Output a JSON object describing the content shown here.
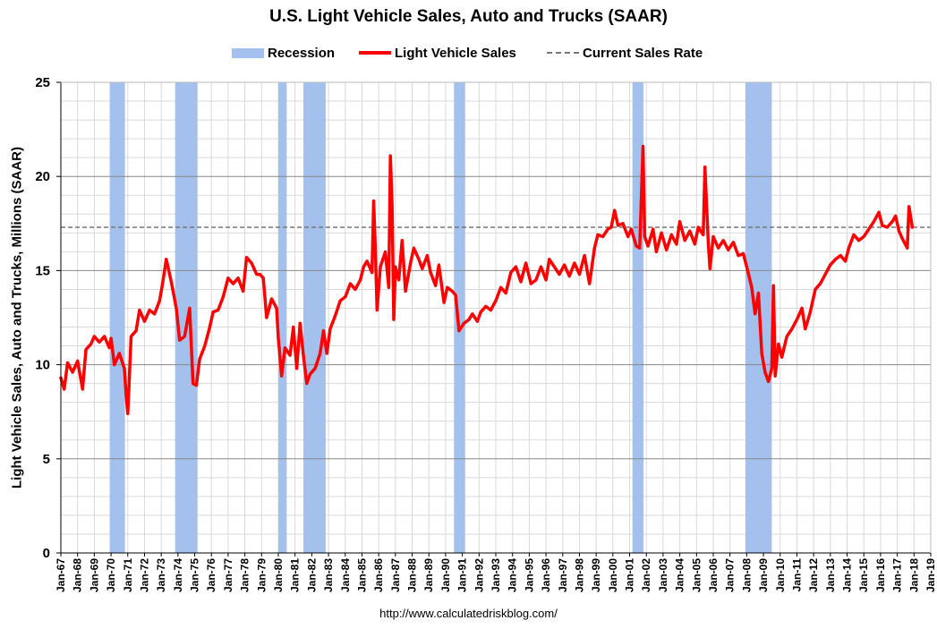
{
  "chart_data": {
    "type": "line",
    "title": "U.S. Light Vehicle Sales, Auto and Trucks (SAAR)",
    "ylabel": "Light Vehicle Sales, Auto and Trucks, Millions (SAAR)",
    "xlabel": "",
    "ylim": [
      0,
      25
    ],
    "yticks": [
      0,
      5,
      10,
      15,
      20,
      25
    ],
    "xlim": [
      1967,
      2019
    ],
    "xticks": [
      "Jan-67",
      "Jan-68",
      "Jan-69",
      "Jan-70",
      "Jan-71",
      "Jan-72",
      "Jan-73",
      "Jan-74",
      "Jan-75",
      "Jan-76",
      "Jan-77",
      "Jan-78",
      "Jan-79",
      "Jan-80",
      "Jan-81",
      "Jan-82",
      "Jan-83",
      "Jan-84",
      "Jan-85",
      "Jan-86",
      "Jan-87",
      "Jan-88",
      "Jan-89",
      "Jan-90",
      "Jan-91",
      "Jan-92",
      "Jan-93",
      "Jan-94",
      "Jan-95",
      "Jan-96",
      "Jan-97",
      "Jan-98",
      "Jan-99",
      "Jan-00",
      "Jan-01",
      "Jan-02",
      "Jan-03",
      "Jan-04",
      "Jan-05",
      "Jan-06",
      "Jan-07",
      "Jan-08",
      "Jan-09",
      "Jan-10",
      "Jan-11",
      "Jan-12",
      "Jan-13",
      "Jan-14",
      "Jan-15",
      "Jan-16",
      "Jan-17",
      "Jan-18",
      "Jan-19"
    ],
    "grid": true,
    "legend_position": "top",
    "legend": [
      "Recession",
      "Light Vehicle Sales",
      "Current Sales Rate"
    ],
    "recessions": [
      [
        1969.92,
        1970.83
      ],
      [
        1973.83,
        1975.17
      ],
      [
        1980.0,
        1980.5
      ],
      [
        1981.5,
        1982.83
      ],
      [
        1990.5,
        1991.17
      ],
      [
        2001.17,
        2001.83
      ],
      [
        2007.92,
        2009.5
      ]
    ],
    "current_sales_rate": 17.3,
    "series": [
      {
        "name": "Light Vehicle Sales",
        "points": [
          [
            1967.0,
            9.3
          ],
          [
            1967.2,
            8.7
          ],
          [
            1967.4,
            10.1
          ],
          [
            1967.7,
            9.6
          ],
          [
            1968.0,
            10.2
          ],
          [
            1968.3,
            8.7
          ],
          [
            1968.5,
            10.8
          ],
          [
            1968.8,
            11.1
          ],
          [
            1969.0,
            11.5
          ],
          [
            1969.3,
            11.2
          ],
          [
            1969.6,
            11.5
          ],
          [
            1969.9,
            10.9
          ],
          [
            1970.0,
            11.4
          ],
          [
            1970.2,
            10.0
          ],
          [
            1970.5,
            10.6
          ],
          [
            1970.8,
            9.8
          ],
          [
            1970.9,
            8.4
          ],
          [
            1971.0,
            7.4
          ],
          [
            1971.2,
            11.5
          ],
          [
            1971.5,
            11.8
          ],
          [
            1971.7,
            12.9
          ],
          [
            1972.0,
            12.3
          ],
          [
            1972.3,
            12.9
          ],
          [
            1972.6,
            12.7
          ],
          [
            1972.9,
            13.4
          ],
          [
            1973.1,
            14.4
          ],
          [
            1973.3,
            15.6
          ],
          [
            1973.6,
            14.4
          ],
          [
            1973.9,
            13.0
          ],
          [
            1974.1,
            11.3
          ],
          [
            1974.4,
            11.5
          ],
          [
            1974.7,
            13.0
          ],
          [
            1974.9,
            9.0
          ],
          [
            1975.1,
            8.9
          ],
          [
            1975.3,
            10.3
          ],
          [
            1975.6,
            11.0
          ],
          [
            1975.9,
            12.0
          ],
          [
            1976.1,
            12.8
          ],
          [
            1976.4,
            12.9
          ],
          [
            1976.7,
            13.6
          ],
          [
            1977.0,
            14.6
          ],
          [
            1977.3,
            14.3
          ],
          [
            1977.6,
            14.6
          ],
          [
            1977.9,
            13.9
          ],
          [
            1978.1,
            15.7
          ],
          [
            1978.4,
            15.4
          ],
          [
            1978.7,
            14.8
          ],
          [
            1978.9,
            14.8
          ],
          [
            1979.1,
            14.6
          ],
          [
            1979.3,
            12.5
          ],
          [
            1979.6,
            13.5
          ],
          [
            1979.9,
            13.0
          ],
          [
            1980.0,
            11.4
          ],
          [
            1980.2,
            9.4
          ],
          [
            1980.4,
            10.9
          ],
          [
            1980.7,
            10.5
          ],
          [
            1980.9,
            12.0
          ],
          [
            1981.1,
            9.8
          ],
          [
            1981.3,
            12.2
          ],
          [
            1981.5,
            10.5
          ],
          [
            1981.7,
            9.0
          ],
          [
            1981.9,
            9.5
          ],
          [
            1982.2,
            9.8
          ],
          [
            1982.5,
            10.6
          ],
          [
            1982.7,
            11.8
          ],
          [
            1982.9,
            10.6
          ],
          [
            1983.1,
            11.9
          ],
          [
            1983.4,
            12.6
          ],
          [
            1983.7,
            13.4
          ],
          [
            1984.0,
            13.6
          ],
          [
            1984.3,
            14.3
          ],
          [
            1984.6,
            14.0
          ],
          [
            1984.9,
            14.5
          ],
          [
            1985.1,
            15.2
          ],
          [
            1985.3,
            15.5
          ],
          [
            1985.6,
            14.9
          ],
          [
            1985.7,
            18.7
          ],
          [
            1985.8,
            16.2
          ],
          [
            1985.9,
            12.9
          ],
          [
            1986.1,
            15.2
          ],
          [
            1986.4,
            16.0
          ],
          [
            1986.6,
            14.1
          ],
          [
            1986.7,
            21.1
          ],
          [
            1986.8,
            18.5
          ],
          [
            1986.9,
            12.4
          ],
          [
            1987.0,
            15.2
          ],
          [
            1987.2,
            14.5
          ],
          [
            1987.4,
            16.6
          ],
          [
            1987.6,
            13.9
          ],
          [
            1987.9,
            15.4
          ],
          [
            1988.1,
            16.2
          ],
          [
            1988.4,
            15.6
          ],
          [
            1988.6,
            15.1
          ],
          [
            1988.9,
            15.8
          ],
          [
            1989.1,
            14.9
          ],
          [
            1989.4,
            14.2
          ],
          [
            1989.6,
            15.3
          ],
          [
            1989.9,
            13.3
          ],
          [
            1990.1,
            14.1
          ],
          [
            1990.4,
            13.9
          ],
          [
            1990.6,
            13.7
          ],
          [
            1990.8,
            11.8
          ],
          [
            1991.1,
            12.2
          ],
          [
            1991.4,
            12.4
          ],
          [
            1991.6,
            12.7
          ],
          [
            1991.9,
            12.3
          ],
          [
            1992.1,
            12.8
          ],
          [
            1992.4,
            13.1
          ],
          [
            1992.7,
            12.9
          ],
          [
            1993.0,
            13.4
          ],
          [
            1993.3,
            14.1
          ],
          [
            1993.6,
            13.8
          ],
          [
            1993.9,
            14.9
          ],
          [
            1994.2,
            15.2
          ],
          [
            1994.5,
            14.4
          ],
          [
            1994.8,
            15.4
          ],
          [
            1995.1,
            14.3
          ],
          [
            1995.4,
            14.5
          ],
          [
            1995.7,
            15.2
          ],
          [
            1996.0,
            14.5
          ],
          [
            1996.2,
            15.6
          ],
          [
            1996.5,
            15.2
          ],
          [
            1996.8,
            14.8
          ],
          [
            1997.1,
            15.3
          ],
          [
            1997.4,
            14.7
          ],
          [
            1997.7,
            15.4
          ],
          [
            1998.0,
            14.8
          ],
          [
            1998.3,
            15.8
          ],
          [
            1998.6,
            14.3
          ],
          [
            1998.9,
            16.2
          ],
          [
            1999.1,
            16.9
          ],
          [
            1999.4,
            16.8
          ],
          [
            1999.7,
            17.2
          ],
          [
            1999.9,
            17.3
          ],
          [
            2000.1,
            18.2
          ],
          [
            2000.3,
            17.4
          ],
          [
            2000.6,
            17.5
          ],
          [
            2000.9,
            16.8
          ],
          [
            2001.1,
            17.2
          ],
          [
            2001.4,
            16.3
          ],
          [
            2001.6,
            16.2
          ],
          [
            2001.8,
            21.6
          ],
          [
            2001.9,
            16.8
          ],
          [
            2002.1,
            16.3
          ],
          [
            2002.4,
            17.2
          ],
          [
            2002.6,
            16.0
          ],
          [
            2002.9,
            17.0
          ],
          [
            2003.2,
            16.1
          ],
          [
            2003.5,
            16.9
          ],
          [
            2003.8,
            16.4
          ],
          [
            2004.0,
            17.6
          ],
          [
            2004.3,
            16.6
          ],
          [
            2004.6,
            17.1
          ],
          [
            2004.9,
            16.4
          ],
          [
            2005.1,
            17.3
          ],
          [
            2005.4,
            16.9
          ],
          [
            2005.5,
            20.5
          ],
          [
            2005.7,
            16.5
          ],
          [
            2005.8,
            15.1
          ],
          [
            2006.0,
            16.8
          ],
          [
            2006.3,
            16.2
          ],
          [
            2006.6,
            16.6
          ],
          [
            2006.9,
            16.1
          ],
          [
            2007.2,
            16.5
          ],
          [
            2007.5,
            15.8
          ],
          [
            2007.8,
            15.9
          ],
          [
            2008.0,
            15.2
          ],
          [
            2008.3,
            14.1
          ],
          [
            2008.5,
            12.7
          ],
          [
            2008.7,
            13.8
          ],
          [
            2008.9,
            10.6
          ],
          [
            2009.1,
            9.6
          ],
          [
            2009.3,
            9.1
          ],
          [
            2009.5,
            9.8
          ],
          [
            2009.6,
            14.2
          ],
          [
            2009.7,
            9.4
          ],
          [
            2009.9,
            11.1
          ],
          [
            2010.1,
            10.4
          ],
          [
            2010.4,
            11.5
          ],
          [
            2010.7,
            11.9
          ],
          [
            2011.0,
            12.4
          ],
          [
            2011.3,
            13.0
          ],
          [
            2011.5,
            11.9
          ],
          [
            2011.8,
            12.8
          ],
          [
            2012.1,
            14.0
          ],
          [
            2012.4,
            14.3
          ],
          [
            2012.7,
            14.8
          ],
          [
            2013.0,
            15.3
          ],
          [
            2013.3,
            15.6
          ],
          [
            2013.6,
            15.8
          ],
          [
            2013.9,
            15.5
          ],
          [
            2014.1,
            16.2
          ],
          [
            2014.4,
            16.9
          ],
          [
            2014.7,
            16.6
          ],
          [
            2015.0,
            16.8
          ],
          [
            2015.3,
            17.2
          ],
          [
            2015.6,
            17.6
          ],
          [
            2015.9,
            18.1
          ],
          [
            2016.1,
            17.4
          ],
          [
            2016.4,
            17.3
          ],
          [
            2016.7,
            17.6
          ],
          [
            2016.9,
            17.9
          ],
          [
            2017.1,
            17.1
          ],
          [
            2017.3,
            16.7
          ],
          [
            2017.6,
            16.2
          ],
          [
            2017.7,
            18.4
          ],
          [
            2017.9,
            17.3
          ]
        ]
      }
    ]
  },
  "source_note": "http://www.calculatedriskblog.com/",
  "colors": {
    "recession": "#a3c1ec",
    "sales_line": "#ff0000",
    "current_rate": "#777777",
    "major_grid": "#888888",
    "minor_grid": "#d9d9d9"
  }
}
